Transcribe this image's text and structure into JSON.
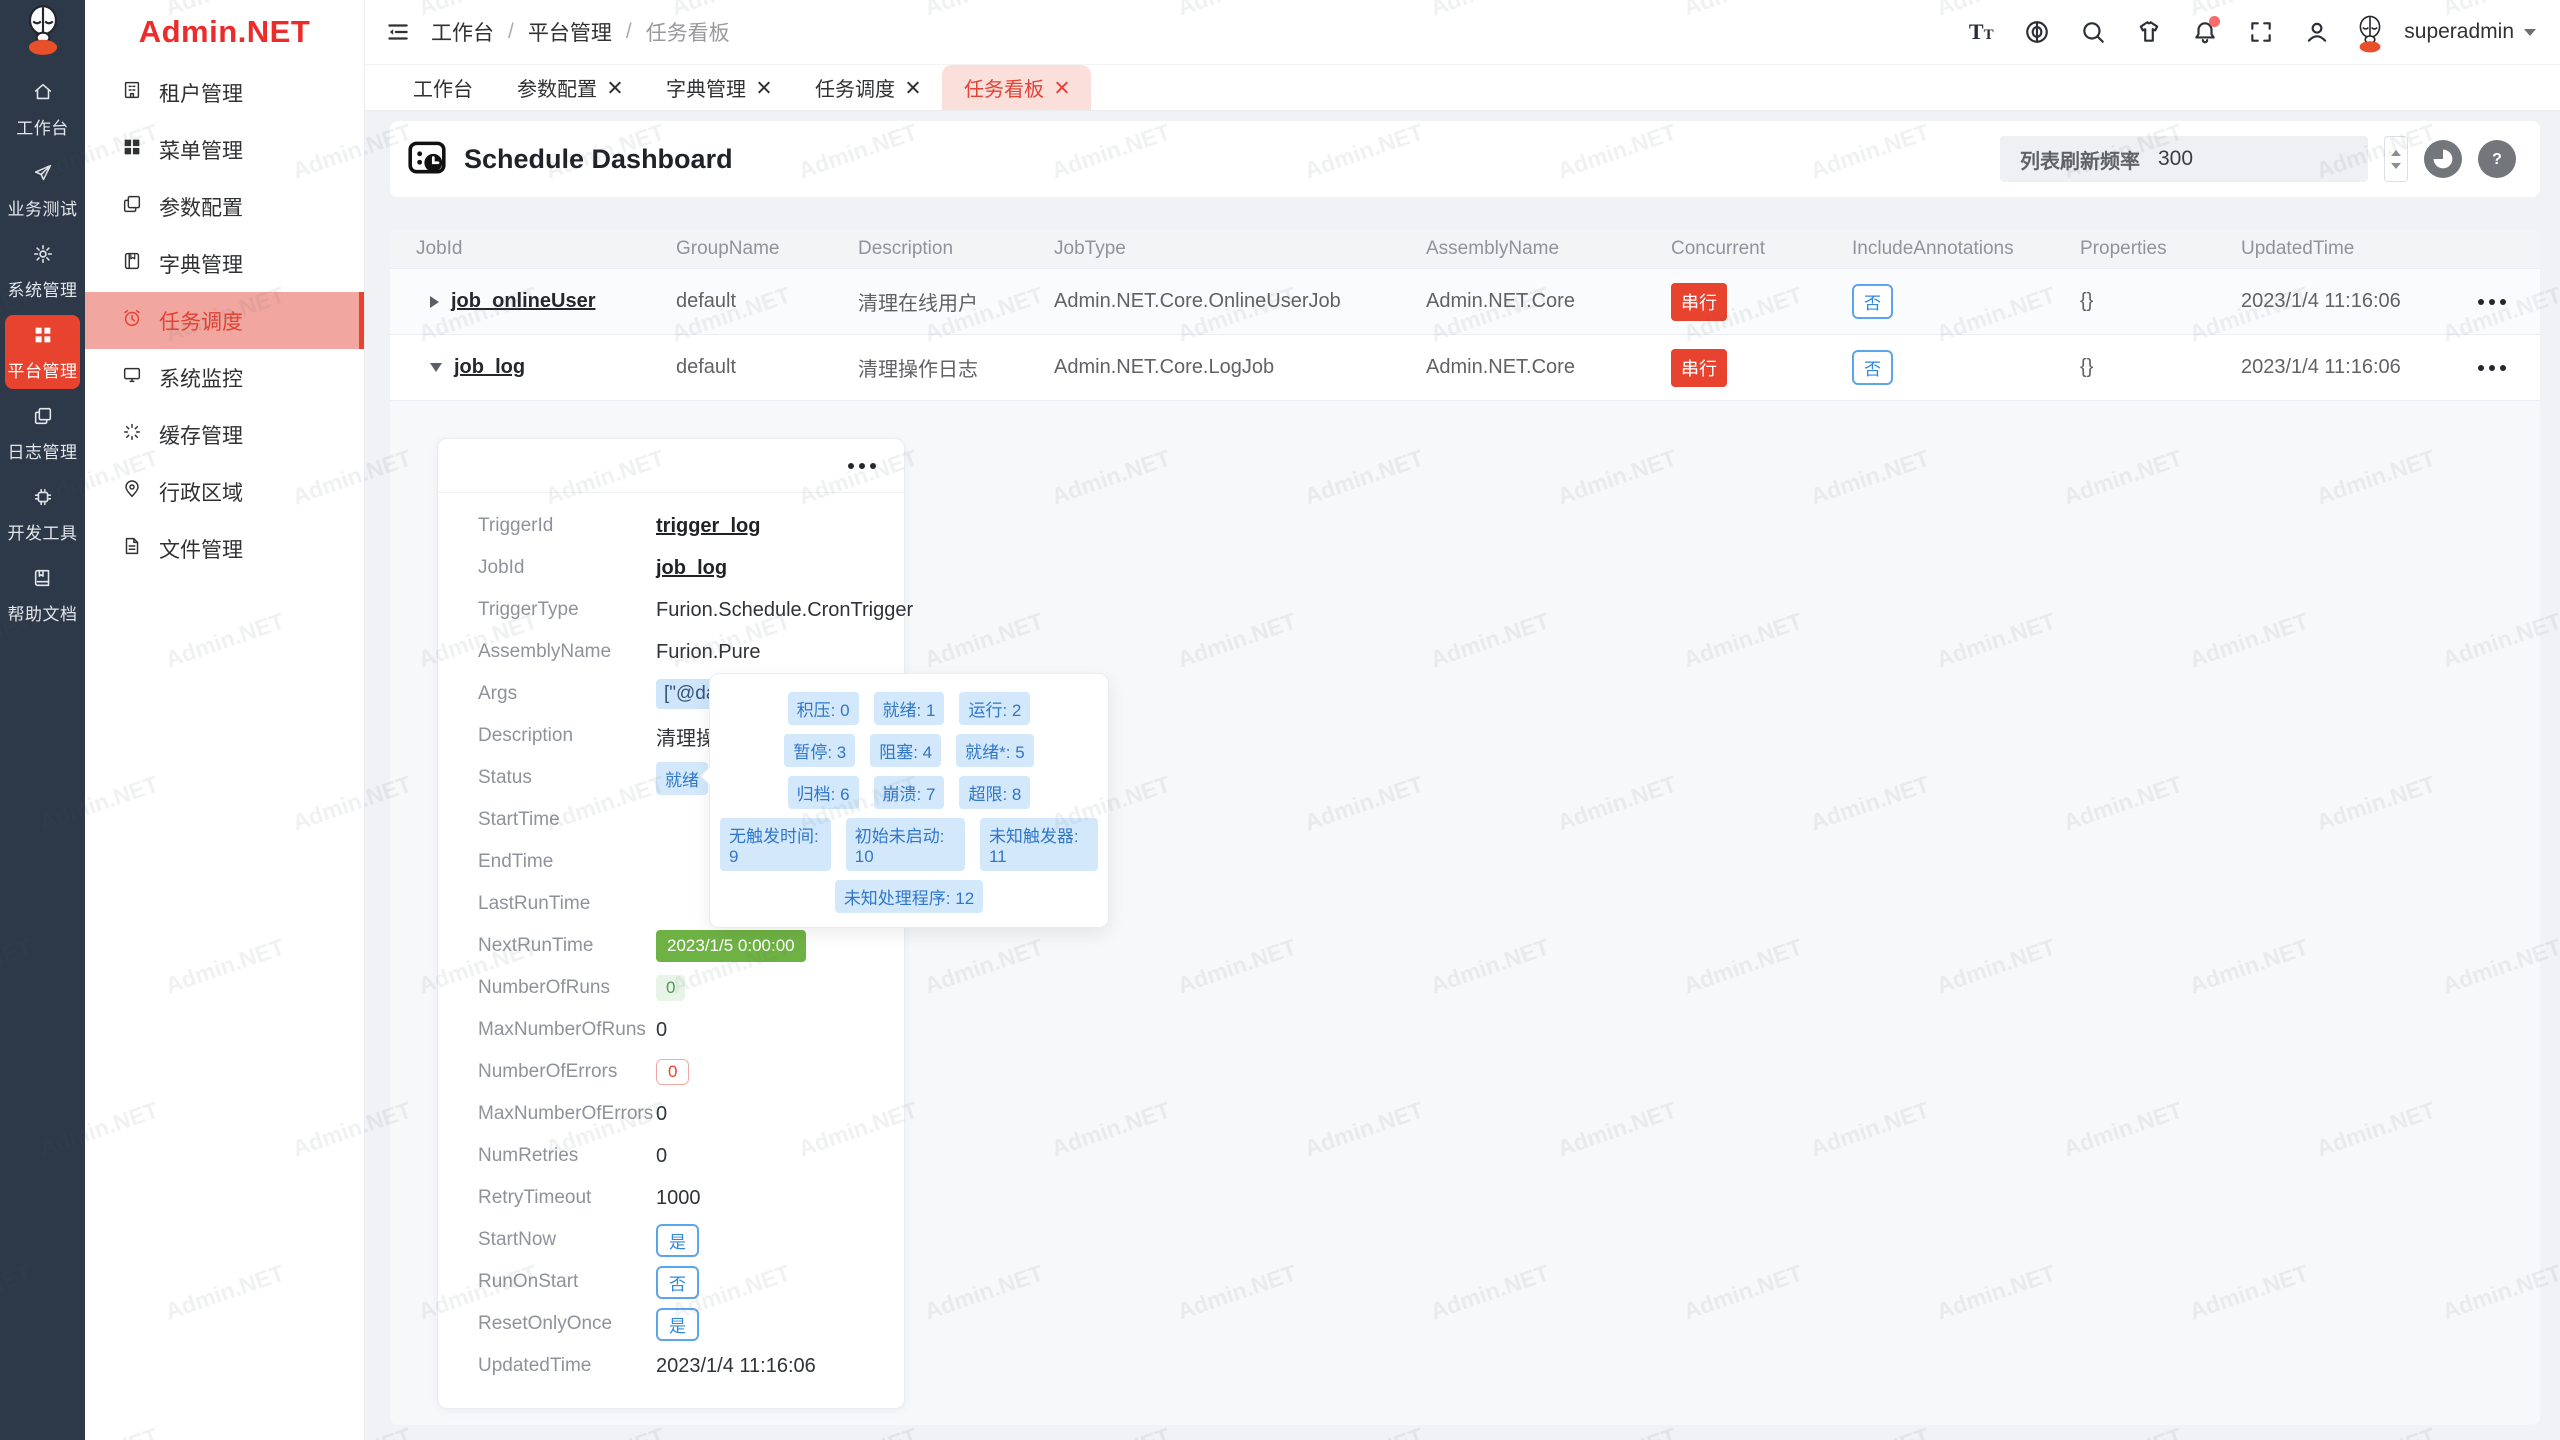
{
  "brand": {
    "name": "Admin.NET"
  },
  "watermark": "Admin.NET",
  "colors": {
    "accent_red": "#e8432e",
    "brand_red": "#ed2b2a",
    "blue": "#409eff",
    "green_solid": "#6fb244",
    "rail_bg": "#2d3848",
    "page_bg": "#f0f2f5",
    "active_tab_bg": "#fbdfdb",
    "sidebar_active_bg": "#f1a7a0"
  },
  "rail": {
    "items": [
      {
        "label": "工作台"
      },
      {
        "label": "业务测试"
      },
      {
        "label": "系统管理"
      },
      {
        "label": "平台管理",
        "active": true
      },
      {
        "label": "日志管理"
      },
      {
        "label": "开发工具"
      },
      {
        "label": "帮助文档"
      }
    ]
  },
  "sidebar": {
    "items": [
      {
        "label": "租户管理"
      },
      {
        "label": "菜单管理"
      },
      {
        "label": "参数配置"
      },
      {
        "label": "字典管理"
      },
      {
        "label": "任务调度",
        "active": true
      },
      {
        "label": "系统监控"
      },
      {
        "label": "缓存管理"
      },
      {
        "label": "行政区域"
      },
      {
        "label": "文件管理"
      }
    ]
  },
  "topbar": {
    "breadcrumb": [
      "工作台",
      "平台管理",
      "任务看板"
    ],
    "breadcrumb_separator": "/",
    "username": "superadmin"
  },
  "tabs": [
    {
      "label": "工作台",
      "closable": false
    },
    {
      "label": "参数配置",
      "closable": true
    },
    {
      "label": "字典管理",
      "closable": true
    },
    {
      "label": "任务调度",
      "closable": true
    },
    {
      "label": "任务看板",
      "closable": true,
      "active": true
    }
  ],
  "toolbar": {
    "title": "Schedule Dashboard",
    "refresh_label": "列表刷新频率",
    "refresh_value": "300"
  },
  "table": {
    "columns": [
      "JobId",
      "GroupName",
      "Description",
      "JobType",
      "AssemblyName",
      "Concurrent",
      "IncludeAnnotations",
      "Properties",
      "UpdatedTime"
    ],
    "rows": [
      {
        "job_id": "job_onlineUser",
        "group_name": "default",
        "description": "清理在线用户",
        "job_type": "Admin.NET.Core.OnlineUserJob",
        "assembly_name": "Admin.NET.Core",
        "concurrent": "串行",
        "include_annotations": "否",
        "properties": "{}",
        "updated_time": "2023/1/4 11:16:06",
        "expanded": false
      },
      {
        "job_id": "job_log",
        "group_name": "default",
        "description": "清理操作日志",
        "job_type": "Admin.NET.Core.LogJob",
        "assembly_name": "Admin.NET.Core",
        "concurrent": "串行",
        "include_annotations": "否",
        "properties": "{}",
        "updated_time": "2023/1/4 11:16:06",
        "expanded": true
      }
    ]
  },
  "detail": {
    "fields": [
      {
        "label": "TriggerId",
        "value": "trigger_log"
      },
      {
        "label": "JobId",
        "value": "job_log"
      },
      {
        "label": "TriggerType",
        "value": "Furion.Schedule.CronTrigger"
      },
      {
        "label": "AssemblyName",
        "value": "Furion.Pure"
      },
      {
        "label": "Args",
        "value": "[\"@daily"
      },
      {
        "label": "Description",
        "value": "清理操作日志"
      },
      {
        "label": "Status",
        "value": "就绪"
      },
      {
        "label": "StartTime",
        "value": ""
      },
      {
        "label": "EndTime",
        "value": ""
      },
      {
        "label": "LastRunTime",
        "value": ""
      },
      {
        "label": "NextRunTime",
        "value": "2023/1/5 0:00:00"
      },
      {
        "label": "NumberOfRuns",
        "value": "0"
      },
      {
        "label": "MaxNumberOfRuns",
        "value": "0"
      },
      {
        "label": "NumberOfErrors",
        "value": "0"
      },
      {
        "label": "MaxNumberOfErrors",
        "value": "0"
      },
      {
        "label": "NumRetries",
        "value": "0"
      },
      {
        "label": "RetryTimeout",
        "value": "1000"
      },
      {
        "label": "StartNow",
        "value": "是"
      },
      {
        "label": "RunOnStart",
        "value": "否"
      },
      {
        "label": "ResetOnlyOnce",
        "value": "是"
      },
      {
        "label": "UpdatedTime",
        "value": "2023/1/4 11:16:06"
      }
    ]
  },
  "popover": {
    "rows": [
      [
        "积压: 0",
        "就绪: 1",
        "运行: 2"
      ],
      [
        "暂停: 3",
        "阻塞: 4",
        "就绪*: 5"
      ],
      [
        "归档: 6",
        "崩溃: 7",
        "超限: 8"
      ],
      [
        "无触发时间: 9",
        "初始未启动: 10",
        "未知触发器: 11"
      ],
      [
        "未知处理程序: 12"
      ]
    ]
  }
}
